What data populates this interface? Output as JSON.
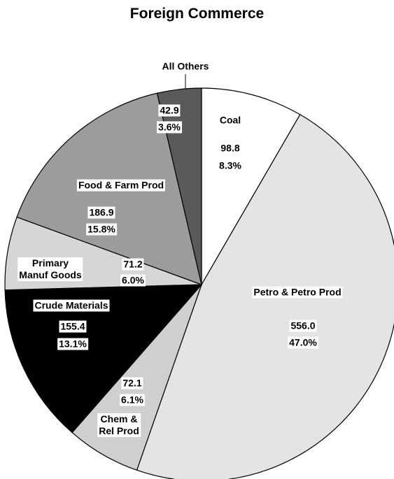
{
  "chart_data": {
    "type": "pie",
    "title": "Foreign Commerce",
    "categories": [
      "Coal",
      "Petro & Petro Prod",
      "Chem &\nRel Prod",
      "Crude Materials",
      "Primary\nManuf Goods",
      "Food & Farm Prod",
      "All Others"
    ],
    "values": [
      98.8,
      556.0,
      72.1,
      155.4,
      71.2,
      186.9,
      42.9
    ],
    "value_labels": [
      "98.8",
      "556.0",
      "72.1",
      "155.4",
      "71.2",
      "186.9",
      "42.9"
    ],
    "percent_labels": [
      "8.3%",
      "47.0%",
      "6.1%",
      "13.1%",
      "6.0%",
      "15.8%",
      "3.6%"
    ],
    "colors": [
      "#ffffff",
      "#e4e4e4",
      "#cfcfcf",
      "#000000",
      "#d6d6d6",
      "#9c9c9c",
      "#5a5a5a"
    ]
  }
}
